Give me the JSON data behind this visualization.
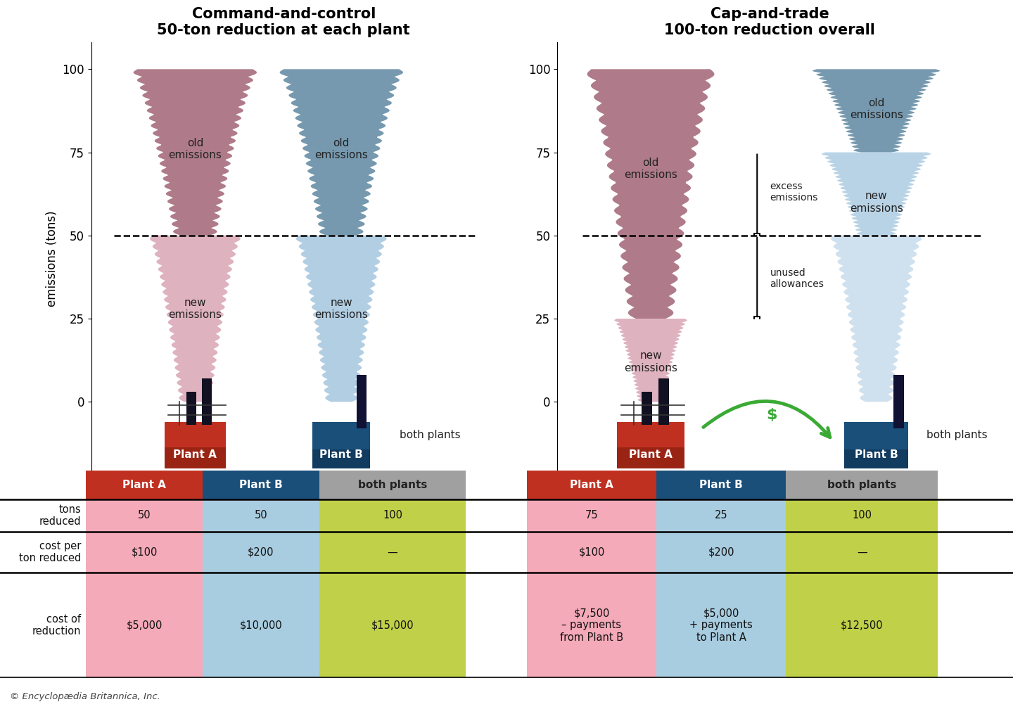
{
  "title_left_1": "Command-and-control",
  "title_left_2": "50-ton reduction at each plant",
  "title_right_1": "Cap-and-trade",
  "title_right_2": "100-ton reduction overall",
  "bg_color": "#ffffff",
  "ylabel": "emissions (tons)",
  "yticks": [
    0,
    25,
    50,
    75,
    100
  ],
  "smoke_a_old_color": "#a87080",
  "smoke_a_new_color": "#dba8b8",
  "smoke_b_old_color": "#6a90a8",
  "smoke_b_new_color": "#a8c8e0",
  "plant_a_color_top": "#c03020",
  "plant_a_color_bot": "#8b2010",
  "plant_b_color_top": "#1a4f7a",
  "plant_b_color_bot": "#0d2f4f",
  "table_pink": "#f4aab8",
  "table_blue": "#a8cce0",
  "table_green": "#c0d048",
  "table_hdr_red": "#c03020",
  "table_hdr_blue": "#1a4f7a",
  "footer_text": "© Encyclopædia Britannica, Inc."
}
